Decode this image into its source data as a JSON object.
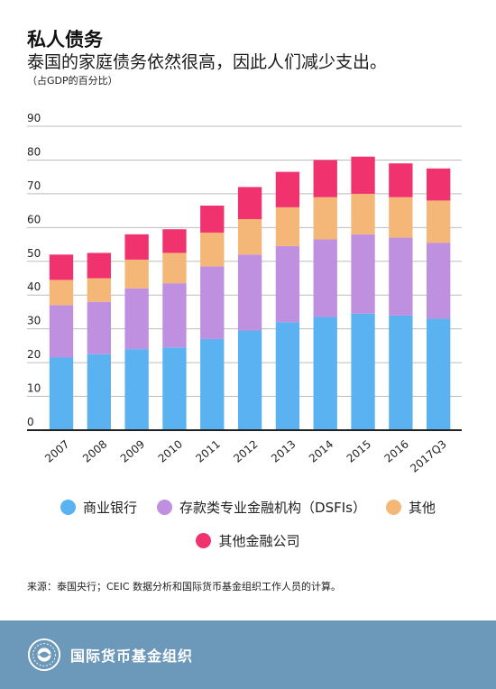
{
  "header": {
    "title": "私人债务",
    "subtitle": "泰国的家庭债务依然很高，因此人们减少支出。",
    "unit": "（占GDP的百分比）"
  },
  "legend": {
    "item1": "商业银行",
    "item2": "存款类专业金融机构（DSFIs）",
    "item3": "其他",
    "item4": "其他金融公司"
  },
  "source": "来源：泰国央行；CEIC 数据分析和国际货币基金组织工作人员的计算。",
  "footer": {
    "org_name": "国际货币基金组织",
    "logo_icon": "imf-seal-icon"
  },
  "colors": {
    "commercial_banks": "#5ab3f0",
    "dsfis": "#bf8fe0",
    "other": "#f5b777",
    "other_financial": "#f0336e",
    "footer_bg": "#6c98b9"
  },
  "chart_data": {
    "type": "bar",
    "stacked": true,
    "categories": [
      "2007",
      "2008",
      "2009",
      "2010",
      "2011",
      "2012",
      "2013",
      "2014",
      "2015",
      "2016",
      "2017Q3"
    ],
    "series": [
      {
        "name": "商业银行",
        "color": "#5ab3f0",
        "values": [
          21.5,
          22.5,
          24,
          24.5,
          27,
          29.5,
          32,
          33.5,
          34.5,
          34,
          33
        ]
      },
      {
        "name": "存款类专业金融机构（DSFIs）",
        "color": "#bf8fe0",
        "values": [
          15.5,
          15.5,
          18,
          19,
          21.5,
          22.5,
          22.5,
          23,
          23.5,
          23,
          22.5
        ]
      },
      {
        "name": "其他",
        "color": "#f5b777",
        "values": [
          7.5,
          7,
          8.5,
          9,
          10,
          10.5,
          11.5,
          12.5,
          12,
          12,
          12.5
        ]
      },
      {
        "name": "其他金融公司",
        "color": "#f0336e",
        "values": [
          7.5,
          7.5,
          7.5,
          7,
          8,
          9.5,
          10.5,
          11,
          11,
          10,
          9.5
        ]
      }
    ],
    "ylim": [
      0,
      90
    ],
    "yticks": [
      0,
      10,
      20,
      30,
      40,
      50,
      60,
      70,
      80,
      90
    ],
    "grid": true
  }
}
